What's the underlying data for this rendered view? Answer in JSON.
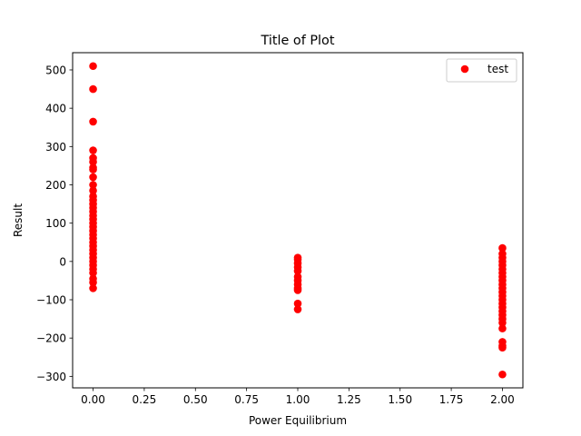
{
  "chart_data": {
    "type": "scatter",
    "title": "Title of Plot",
    "xlabel": "Power Equilibrium",
    "ylabel": "Result",
    "xlim": [
      -0.1,
      2.1
    ],
    "ylim": [
      -330,
      545
    ],
    "xticks": [
      0.0,
      0.25,
      0.5,
      0.75,
      1.0,
      1.25,
      1.5,
      1.75,
      2.0
    ],
    "xtick_labels": [
      "0.00",
      "0.25",
      "0.50",
      "0.75",
      "1.00",
      "1.25",
      "1.50",
      "1.75",
      "2.00"
    ],
    "yticks": [
      -300,
      -200,
      -100,
      0,
      100,
      200,
      300,
      400,
      500
    ],
    "ytick_labels": [
      "−300",
      "−200",
      "−100",
      "0",
      "100",
      "200",
      "300",
      "400",
      "500"
    ],
    "grid": false,
    "legend_position": "top-right",
    "series": [
      {
        "name": "test",
        "color": "#ff0000",
        "marker": "circle",
        "points": [
          [
            0,
            510
          ],
          [
            0,
            450
          ],
          [
            0,
            365
          ],
          [
            0,
            290
          ],
          [
            0,
            270
          ],
          [
            0,
            260
          ],
          [
            0,
            245
          ],
          [
            0,
            240
          ],
          [
            0,
            220
          ],
          [
            0,
            200
          ],
          [
            0,
            185
          ],
          [
            0,
            170
          ],
          [
            0,
            160
          ],
          [
            0,
            150
          ],
          [
            0,
            140
          ],
          [
            0,
            130
          ],
          [
            0,
            120
          ],
          [
            0,
            110
          ],
          [
            0,
            100
          ],
          [
            0,
            90
          ],
          [
            0,
            80
          ],
          [
            0,
            70
          ],
          [
            0,
            60
          ],
          [
            0,
            50
          ],
          [
            0,
            40
          ],
          [
            0,
            30
          ],
          [
            0,
            20
          ],
          [
            0,
            10
          ],
          [
            0,
            0
          ],
          [
            0,
            -10
          ],
          [
            0,
            -20
          ],
          [
            0,
            -30
          ],
          [
            0,
            -45
          ],
          [
            0,
            -55
          ],
          [
            0,
            -70
          ],
          [
            1,
            10
          ],
          [
            1,
            5
          ],
          [
            1,
            -5
          ],
          [
            1,
            -15
          ],
          [
            1,
            -25
          ],
          [
            1,
            -40
          ],
          [
            1,
            -50
          ],
          [
            1,
            -60
          ],
          [
            1,
            -70
          ],
          [
            1,
            -75
          ],
          [
            1,
            -110
          ],
          [
            1,
            -125
          ],
          [
            2,
            35
          ],
          [
            2,
            20
          ],
          [
            2,
            10
          ],
          [
            2,
            0
          ],
          [
            2,
            -10
          ],
          [
            2,
            -20
          ],
          [
            2,
            -30
          ],
          [
            2,
            -40
          ],
          [
            2,
            -50
          ],
          [
            2,
            -60
          ],
          [
            2,
            -70
          ],
          [
            2,
            -80
          ],
          [
            2,
            -90
          ],
          [
            2,
            -100
          ],
          [
            2,
            -110
          ],
          [
            2,
            -120
          ],
          [
            2,
            -130
          ],
          [
            2,
            -140
          ],
          [
            2,
            -150
          ],
          [
            2,
            -160
          ],
          [
            2,
            -175
          ],
          [
            2,
            -210
          ],
          [
            2,
            -220
          ],
          [
            2,
            -225
          ],
          [
            2,
            -295
          ]
        ]
      }
    ]
  }
}
